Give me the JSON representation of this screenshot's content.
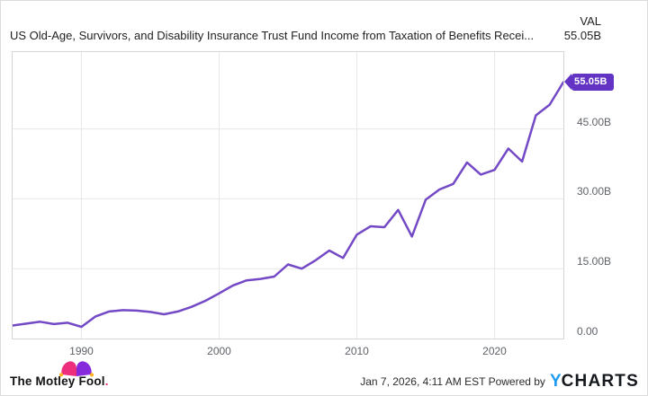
{
  "header": {
    "title": "US Old-Age, Survivors, and Disability Insurance Trust Fund Income from Taxation of Benefits Recei...",
    "val_label": "VAL",
    "val_value": "55.05B"
  },
  "chart_data": {
    "type": "line",
    "title": "US Old-Age, Survivors, and Disability Insurance Trust Fund Income from Taxation of Benefits Recei...",
    "series": [
      {
        "name": "Income from Taxation of Benefits",
        "x": [
          1985,
          1986,
          1987,
          1988,
          1989,
          1990,
          1991,
          1992,
          1993,
          1994,
          1995,
          1996,
          1997,
          1998,
          1999,
          2000,
          2001,
          2002,
          2003,
          2004,
          2005,
          2006,
          2007,
          2008,
          2009,
          2010,
          2011,
          2012,
          2013,
          2014,
          2015,
          2016,
          2017,
          2018,
          2019,
          2020,
          2021,
          2022,
          2023,
          2024,
          2025
        ],
        "values": [
          2.8,
          3.2,
          3.6,
          3.1,
          3.4,
          2.5,
          4.7,
          5.8,
          6.1,
          6.0,
          5.7,
          5.2,
          5.8,
          6.8,
          8.1,
          9.7,
          11.4,
          12.5,
          12.8,
          13.3,
          15.9,
          15.0,
          16.8,
          18.9,
          17.3,
          22.3,
          24.1,
          23.9,
          27.6,
          21.9,
          29.8,
          32.0,
          33.2,
          37.8,
          35.2,
          36.2,
          40.8,
          38.0,
          47.9,
          50.2,
          55.05
        ]
      }
    ],
    "last_value_label": "55.05B",
    "xlim": [
      1985,
      2025
    ],
    "ylim": [
      0,
      61.5
    ],
    "x_ticks": [
      {
        "value": 1990,
        "label": "1990"
      },
      {
        "value": 2000,
        "label": "2000"
      },
      {
        "value": 2010,
        "label": "2010"
      },
      {
        "value": 2020,
        "label": "2020"
      }
    ],
    "y_ticks": [
      {
        "value": 45,
        "label": "45.00B"
      },
      {
        "value": 30,
        "label": "30.00B"
      },
      {
        "value": 15,
        "label": "15.00B"
      },
      {
        "value": 0,
        "label": "0.00"
      }
    ],
    "grid": true,
    "legend_position": "none",
    "line_color": "#7449c6",
    "badge_color": "#6333c4",
    "grid_color": "#e7e7e7"
  },
  "footer": {
    "brand": "The Motley Fool",
    "brand_dot": ".",
    "timestamp": "Jan 7, 2026, 4:11 AM EST",
    "powered_by": "Powered by",
    "ycharts_y": "Y",
    "ycharts_rest": "CHARTS"
  },
  "icons": {
    "jester_hat": {
      "pink": "#ed2e7c",
      "purple": "#8628db",
      "gold": "#ffb01f"
    }
  }
}
